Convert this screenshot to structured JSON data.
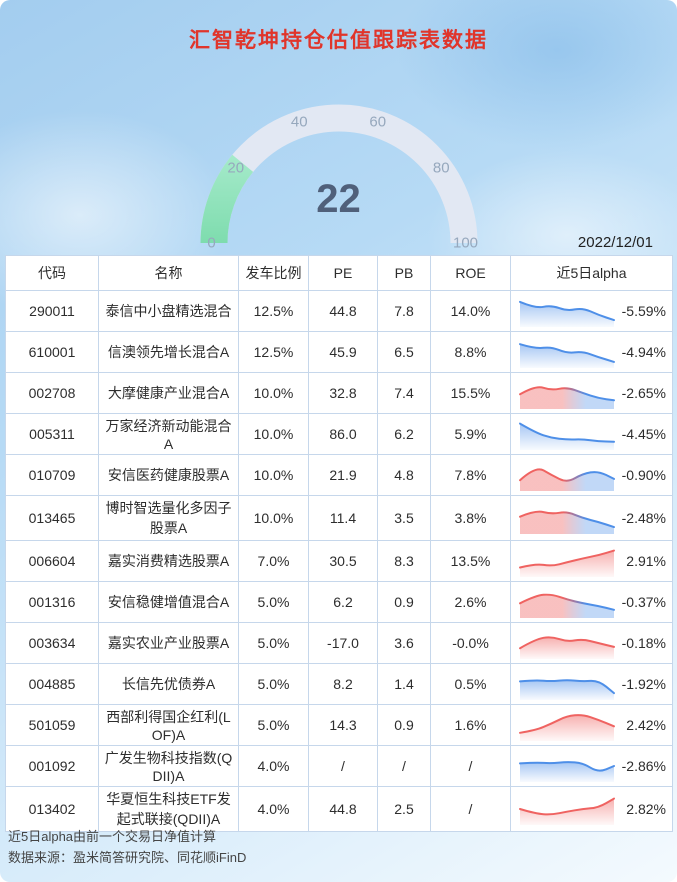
{
  "title": "汇智乾坤持仓估值跟踪表数据",
  "date": "2022/12/01",
  "gauge": {
    "value": 22,
    "min": 0,
    "max": 100,
    "ticks": [
      0,
      20,
      40,
      60,
      80,
      100
    ]
  },
  "table": {
    "headers": [
      "代码",
      "名称",
      "发车比例",
      "PE",
      "PB",
      "ROE",
      "近5日alpha"
    ],
    "rows": [
      {
        "code": "290011",
        "name": "泰信中小盘精选混合",
        "ratio": "12.5%",
        "pe": "44.8",
        "pb": "7.8",
        "roe": "14.0%",
        "alpha": "-5.59%",
        "trend": "blue",
        "spark": [
          0.85,
          0.6,
          0.72,
          0.5,
          0.62,
          0.35,
          0.15
        ]
      },
      {
        "code": "610001",
        "name": "信澳领先增长混合A",
        "ratio": "12.5%",
        "pe": "45.9",
        "pb": "6.5",
        "roe": "8.8%",
        "alpha": "-4.94%",
        "trend": "blue",
        "spark": [
          0.8,
          0.62,
          0.7,
          0.45,
          0.52,
          0.3,
          0.12
        ]
      },
      {
        "code": "002708",
        "name": "大摩健康产业混合A",
        "ratio": "10.0%",
        "pe": "32.8",
        "pb": "7.4",
        "roe": "15.5%",
        "alpha": "-2.65%",
        "trend": "red-blue",
        "spark": [
          0.45,
          0.8,
          0.6,
          0.72,
          0.5,
          0.3,
          0.22
        ]
      },
      {
        "code": "005311",
        "name": "万家经济新动能混合A",
        "ratio": "10.0%",
        "pe": "86.0",
        "pb": "6.2",
        "roe": "5.9%",
        "alpha": "-4.45%",
        "trend": "blue",
        "spark": [
          0.9,
          0.55,
          0.35,
          0.28,
          0.3,
          0.22,
          0.2
        ]
      },
      {
        "code": "010709",
        "name": "安信医药健康股票A",
        "ratio": "10.0%",
        "pe": "21.9",
        "pb": "4.8",
        "roe": "7.8%",
        "alpha": "-0.90%",
        "trend": "red-blue",
        "spark": [
          0.3,
          0.85,
          0.5,
          0.2,
          0.55,
          0.65,
          0.35
        ]
      },
      {
        "code": "013465",
        "name": "博时智选量化多因子股票A",
        "ratio": "10.0%",
        "pe": "11.4",
        "pb": "3.5",
        "roe": "3.8%",
        "alpha": "-2.48%",
        "trend": "red-blue",
        "spark": [
          0.55,
          0.8,
          0.65,
          0.75,
          0.5,
          0.35,
          0.15
        ]
      },
      {
        "code": "006604",
        "name": "嘉实消费精选股票A",
        "ratio": "7.0%",
        "pe": "30.5",
        "pb": "8.3",
        "roe": "13.5%",
        "alpha": "2.91%",
        "trend": "red",
        "spark": [
          0.25,
          0.4,
          0.3,
          0.45,
          0.6,
          0.72,
          0.9
        ]
      },
      {
        "code": "001316",
        "name": "安信稳健增值混合A",
        "ratio": "5.0%",
        "pe": "6.2",
        "pb": "0.9",
        "roe": "2.6%",
        "alpha": "-0.37%",
        "trend": "red-blue",
        "spark": [
          0.45,
          0.75,
          0.8,
          0.6,
          0.45,
          0.35,
          0.2
        ]
      },
      {
        "code": "003634",
        "name": "嘉实农业产业股票A",
        "ratio": "5.0%",
        "pe": "-17.0",
        "pb": "3.6",
        "roe": "-0.0%",
        "alpha": "-0.18%",
        "trend": "red",
        "spark": [
          0.3,
          0.65,
          0.75,
          0.55,
          0.65,
          0.5,
          0.35
        ]
      },
      {
        "code": "004885",
        "name": "长信先优债券A",
        "ratio": "5.0%",
        "pe": "8.2",
        "pb": "1.4",
        "roe": "0.5%",
        "alpha": "-1.92%",
        "trend": "blue",
        "spark": [
          0.6,
          0.65,
          0.6,
          0.66,
          0.6,
          0.64,
          0.15
        ]
      },
      {
        "code": "501059",
        "name": "西部利得国企红利(LOF)A",
        "ratio": "5.0%",
        "pe": "14.3",
        "pb": "0.9",
        "roe": "1.6%",
        "alpha": "2.42%",
        "trend": "red",
        "spark": [
          0.2,
          0.3,
          0.55,
          0.85,
          0.9,
          0.7,
          0.45
        ]
      },
      {
        "code": "001092",
        "name": "广发生物科技指数(QDII)A",
        "ratio": "4.0%",
        "pe": "/",
        "pb": "/",
        "roe": "/",
        "alpha": "-2.86%",
        "trend": "blue",
        "spark": [
          0.6,
          0.64,
          0.6,
          0.66,
          0.62,
          0.25,
          0.5
        ]
      },
      {
        "code": "013402",
        "name": "华夏恒生科技ETF发起式联接(QDII)A",
        "ratio": "4.0%",
        "pe": "44.8",
        "pb": "2.5",
        "roe": "/",
        "alpha": "2.82%",
        "trend": "red",
        "spark": [
          0.5,
          0.32,
          0.28,
          0.4,
          0.5,
          0.55,
          0.9
        ]
      }
    ]
  },
  "footnotes": [
    "近5日alpha由前一个交易日净值计算",
    "数据来源：盈米简答研究院、同花顺iFinD"
  ],
  "colors": {
    "title_red": "#e0352b",
    "spark_red": "#ef6361",
    "spark_blue": "#4e8fe8",
    "gauge_green": "#8ce2ba",
    "gauge_track": "#e2e8f3"
  },
  "chart_data": [
    {
      "type": "gauge",
      "title": "汇智乾坤持仓估值跟踪表数据",
      "value": 22,
      "min": 0,
      "max": 100,
      "ticks": [
        0,
        20,
        40,
        60,
        80,
        100
      ]
    },
    {
      "type": "table",
      "title": "持仓估值跟踪表 2022/12/01",
      "columns": [
        "代码",
        "名称",
        "发车比例",
        "PE",
        "PB",
        "ROE",
        "近5日alpha"
      ],
      "rows": [
        [
          "290011",
          "泰信中小盘精选混合",
          "12.5%",
          "44.8",
          "7.8",
          "14.0%",
          "-5.59%"
        ],
        [
          "610001",
          "信澳领先增长混合A",
          "12.5%",
          "45.9",
          "6.5",
          "8.8%",
          "-4.94%"
        ],
        [
          "002708",
          "大摩健康产业混合A",
          "10.0%",
          "32.8",
          "7.4",
          "15.5%",
          "-2.65%"
        ],
        [
          "005311",
          "万家经济新动能混合A",
          "10.0%",
          "86.0",
          "6.2",
          "5.9%",
          "-4.45%"
        ],
        [
          "010709",
          "安信医药健康股票A",
          "10.0%",
          "21.9",
          "4.8",
          "7.8%",
          "-0.90%"
        ],
        [
          "013465",
          "博时智选量化多因子股票A",
          "10.0%",
          "11.4",
          "3.5",
          "3.8%",
          "-2.48%"
        ],
        [
          "006604",
          "嘉实消费精选股票A",
          "7.0%",
          "30.5",
          "8.3",
          "13.5%",
          "2.91%"
        ],
        [
          "001316",
          "安信稳健增值混合A",
          "5.0%",
          "6.2",
          "0.9",
          "2.6%",
          "-0.37%"
        ],
        [
          "003634",
          "嘉实农业产业股票A",
          "5.0%",
          "-17.0",
          "3.6",
          "-0.0%",
          "-0.18%"
        ],
        [
          "004885",
          "长信先优债券A",
          "5.0%",
          "8.2",
          "1.4",
          "0.5%",
          "-1.92%"
        ],
        [
          "501059",
          "西部利得国企红利(LOF)A",
          "5.0%",
          "14.3",
          "0.9",
          "1.6%",
          "2.42%"
        ],
        [
          "001092",
          "广发生物科技指数(QDII)A",
          "4.0%",
          "/",
          "/",
          "/",
          "-2.86%"
        ],
        [
          "013402",
          "华夏恒生科技ETF发起式联接(QDII)A",
          "4.0%",
          "44.8",
          "2.5",
          "/",
          "2.82%"
        ]
      ]
    },
    {
      "type": "line",
      "title": "近5日alpha sparkline shapes (estimated, unitless)",
      "series": [
        {
          "name": "290011",
          "values": [
            0.85,
            0.6,
            0.72,
            0.5,
            0.62,
            0.35,
            0.15
          ]
        },
        {
          "name": "610001",
          "values": [
            0.8,
            0.62,
            0.7,
            0.45,
            0.52,
            0.3,
            0.12
          ]
        },
        {
          "name": "002708",
          "values": [
            0.45,
            0.8,
            0.6,
            0.72,
            0.5,
            0.3,
            0.22
          ]
        },
        {
          "name": "005311",
          "values": [
            0.9,
            0.55,
            0.35,
            0.28,
            0.3,
            0.22,
            0.2
          ]
        },
        {
          "name": "010709",
          "values": [
            0.3,
            0.85,
            0.5,
            0.2,
            0.55,
            0.65,
            0.35
          ]
        },
        {
          "name": "013465",
          "values": [
            0.55,
            0.8,
            0.65,
            0.75,
            0.5,
            0.35,
            0.15
          ]
        },
        {
          "name": "006604",
          "values": [
            0.25,
            0.4,
            0.3,
            0.45,
            0.6,
            0.72,
            0.9
          ]
        },
        {
          "name": "001316",
          "values": [
            0.45,
            0.75,
            0.8,
            0.6,
            0.45,
            0.35,
            0.2
          ]
        },
        {
          "name": "003634",
          "values": [
            0.3,
            0.65,
            0.75,
            0.55,
            0.65,
            0.5,
            0.35
          ]
        },
        {
          "name": "004885",
          "values": [
            0.6,
            0.65,
            0.6,
            0.66,
            0.6,
            0.64,
            0.15
          ]
        },
        {
          "name": "501059",
          "values": [
            0.2,
            0.3,
            0.55,
            0.85,
            0.9,
            0.7,
            0.45
          ]
        },
        {
          "name": "001092",
          "values": [
            0.6,
            0.64,
            0.6,
            0.66,
            0.62,
            0.25,
            0.5
          ]
        },
        {
          "name": "013402",
          "values": [
            0.5,
            0.32,
            0.28,
            0.4,
            0.5,
            0.55,
            0.9
          ]
        }
      ]
    }
  ]
}
